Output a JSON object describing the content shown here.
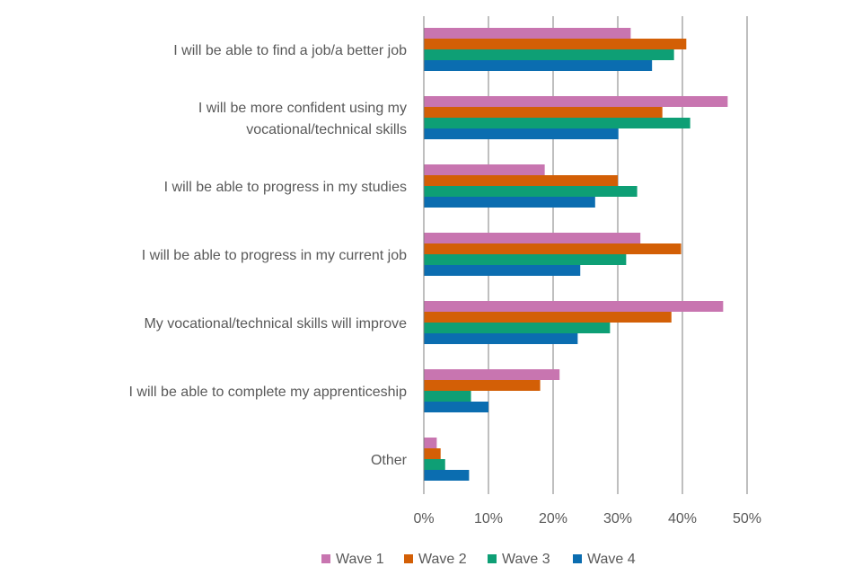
{
  "chart_data": {
    "type": "bar",
    "orientation": "horizontal",
    "title": "",
    "xlabel": "",
    "ylabel": "",
    "xlim": [
      0,
      50
    ],
    "tick_format": "percent",
    "ticks": [
      0,
      10,
      20,
      30,
      40,
      50
    ],
    "tick_labels": [
      "0%",
      "10%",
      "20%",
      "30%",
      "40%",
      "50%"
    ],
    "grid": true,
    "legend_position": "bottom",
    "categories": [
      [
        "I will be able to find a job/a better job"
      ],
      [
        "I will be more confident using my",
        "vocational/technical skills"
      ],
      [
        "I will be able to progress in my studies"
      ],
      [
        "I will be able to progress in my current job"
      ],
      [
        "My vocational/technical skills will improve"
      ],
      [
        "I will be able to complete my apprenticeship"
      ],
      [
        "Other"
      ]
    ],
    "series": [
      {
        "name": "Wave 1",
        "color": "#c875b0",
        "values": [
          32,
          47,
          18.7,
          33.5,
          46.3,
          21,
          2
        ]
      },
      {
        "name": "Wave 2",
        "color": "#d35f06",
        "values": [
          40.6,
          36.9,
          30,
          39.8,
          38.3,
          18,
          2.6
        ]
      },
      {
        "name": "Wave 3",
        "color": "#0e9f75",
        "values": [
          38.7,
          41.2,
          33,
          31.3,
          28.8,
          7.3,
          3.3
        ]
      },
      {
        "name": "Wave 4",
        "color": "#0b6db0",
        "values": [
          35.3,
          30.1,
          26.5,
          24.2,
          23.8,
          10,
          7
        ]
      }
    ]
  }
}
